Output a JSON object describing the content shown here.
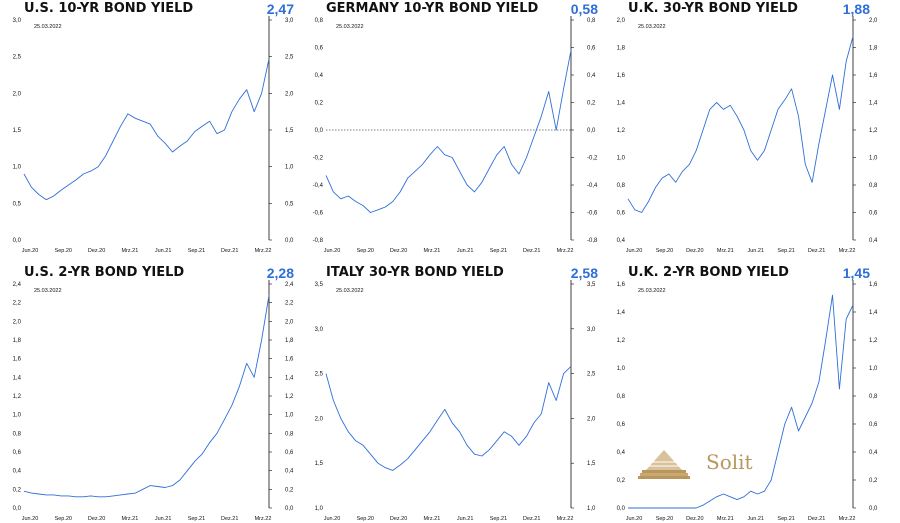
{
  "logo": {
    "text": "Solit",
    "colors": {
      "gold": "#b8965e",
      "gold_light": "#d9c29a"
    }
  },
  "colors": {
    "line": "#2f6fd8",
    "accent": "#2f6fd8",
    "axis": "#111111",
    "zero": "#555555"
  },
  "chart_data": [
    {
      "type": "line",
      "title": "U.S. 10-YR BOND YIELD",
      "last_value": "2,47",
      "date_label": "25.03.2022",
      "ylim": [
        0,
        3
      ],
      "yticks": [
        "0,0",
        "0,5",
        "1,0",
        "1,5",
        "2,0",
        "2,5",
        "3,0"
      ],
      "xticks": [
        "Jun.20",
        "Sep.20",
        "Dez.20",
        "Mrz.21",
        "Jun.21",
        "Sep.21",
        "Dez.21",
        "Mrz.22"
      ],
      "zero_line": false,
      "series": [
        {
          "values": [
            0.9,
            0.72,
            0.62,
            0.55,
            0.6,
            0.68,
            0.75,
            0.82,
            0.9,
            0.94,
            1.0,
            1.15,
            1.35,
            1.55,
            1.72,
            1.66,
            1.62,
            1.58,
            1.42,
            1.32,
            1.2,
            1.28,
            1.35,
            1.48,
            1.55,
            1.62,
            1.45,
            1.5,
            1.75,
            1.92,
            2.05,
            1.75,
            2.0,
            2.47
          ]
        }
      ]
    },
    {
      "type": "line",
      "title": "GERMANY 10-YR BOND YIELD",
      "last_value": "0,58",
      "date_label": "25.03.2022",
      "ylim": [
        -0.8,
        0.8
      ],
      "yticks": [
        "-0,8",
        "-0,6",
        "-0,4",
        "-0,2",
        "0,0",
        "0,2",
        "0,4",
        "0,6",
        "0,8"
      ],
      "xticks": [
        "Jun.20",
        "Sep.20",
        "Dez.20",
        "Mrz.21",
        "Jun.21",
        "Sep.21",
        "Dez.21",
        "Mrz.22"
      ],
      "zero_line": true,
      "series": [
        {
          "values": [
            -0.33,
            -0.45,
            -0.5,
            -0.48,
            -0.52,
            -0.55,
            -0.6,
            -0.58,
            -0.56,
            -0.52,
            -0.45,
            -0.35,
            -0.3,
            -0.25,
            -0.18,
            -0.12,
            -0.18,
            -0.2,
            -0.3,
            -0.4,
            -0.45,
            -0.38,
            -0.28,
            -0.18,
            -0.12,
            -0.25,
            -0.32,
            -0.2,
            -0.05,
            0.1,
            0.28,
            0.0,
            0.3,
            0.58
          ]
        }
      ]
    },
    {
      "type": "line",
      "title": "U.K. 30-YR BOND YIELD",
      "last_value": "1,88",
      "date_label": "25.03.2022",
      "ylim": [
        0.4,
        2.0
      ],
      "yticks": [
        "0,4",
        "0,6",
        "0,8",
        "1,0",
        "1,2",
        "1,4",
        "1,6",
        "1,8",
        "2,0"
      ],
      "xticks": [
        "Jun.20",
        "Sep.20",
        "Dez.20",
        "Mrz.21",
        "Jun.21",
        "Sep.21",
        "Dez.21",
        "Mrz.22"
      ],
      "zero_line": false,
      "series": [
        {
          "values": [
            0.7,
            0.62,
            0.6,
            0.68,
            0.78,
            0.85,
            0.88,
            0.82,
            0.9,
            0.95,
            1.05,
            1.2,
            1.35,
            1.4,
            1.35,
            1.38,
            1.3,
            1.2,
            1.05,
            0.98,
            1.05,
            1.2,
            1.35,
            1.42,
            1.5,
            1.3,
            0.95,
            0.82,
            1.1,
            1.35,
            1.6,
            1.35,
            1.7,
            1.88
          ]
        }
      ]
    },
    {
      "type": "line",
      "title": "U.S. 2-YR BOND YIELD",
      "last_value": "2,28",
      "date_label": "25.03.2022",
      "ylim": [
        0,
        2.4
      ],
      "yticks": [
        "0,0",
        "0,2",
        "0,4",
        "0,6",
        "0,8",
        "1,0",
        "1,2",
        "1,4",
        "1,6",
        "1,8",
        "2,0",
        "2,2",
        "2,4"
      ],
      "xticks": [
        "Jun.20",
        "Sep.20",
        "Dez.20",
        "Mrz.21",
        "Jun.21",
        "Sep.21",
        "Dez.21",
        "Mrz.22"
      ],
      "zero_line": false,
      "series": [
        {
          "values": [
            0.18,
            0.16,
            0.15,
            0.14,
            0.14,
            0.13,
            0.13,
            0.12,
            0.12,
            0.13,
            0.12,
            0.12,
            0.13,
            0.14,
            0.15,
            0.16,
            0.2,
            0.24,
            0.23,
            0.22,
            0.24,
            0.3,
            0.4,
            0.5,
            0.58,
            0.7,
            0.8,
            0.95,
            1.1,
            1.3,
            1.55,
            1.4,
            1.8,
            2.28
          ]
        }
      ]
    },
    {
      "type": "line",
      "title": "ITALY 30-YR BOND YIELD",
      "last_value": "2,58",
      "date_label": "25.03.2022",
      "ylim": [
        1.0,
        3.5
      ],
      "yticks": [
        "1,0",
        "1,5",
        "2,0",
        "2,5",
        "3,0",
        "3,5"
      ],
      "xticks": [
        "Jun.20",
        "Sep.20",
        "Dez.20",
        "Mrz.21",
        "Jun.21",
        "Sep.21",
        "Dez.21",
        "Mrz.22"
      ],
      "zero_line": false,
      "series": [
        {
          "values": [
            2.5,
            2.2,
            2.0,
            1.85,
            1.75,
            1.7,
            1.6,
            1.5,
            1.45,
            1.42,
            1.48,
            1.55,
            1.65,
            1.75,
            1.85,
            1.98,
            2.1,
            1.95,
            1.85,
            1.7,
            1.6,
            1.58,
            1.65,
            1.75,
            1.85,
            1.8,
            1.7,
            1.8,
            1.95,
            2.05,
            2.4,
            2.2,
            2.5,
            2.58
          ]
        }
      ]
    },
    {
      "type": "line",
      "title": "U.K. 2-YR BOND YIELD",
      "last_value": "1,45",
      "date_label": "25.03.2022",
      "ylim": [
        0,
        1.6
      ],
      "yticks": [
        "0,0",
        "0,2",
        "0,4",
        "0,6",
        "0,8",
        "1,0",
        "1,2",
        "1,4",
        "1,6"
      ],
      "xticks": [
        "Jun.20",
        "Sep.20",
        "Dez.20",
        "Mrz.21",
        "Jun.21",
        "Sep.21",
        "Dez.21",
        "Mrz.22"
      ],
      "zero_line": false,
      "series": [
        {
          "values": [
            0.0,
            0.0,
            0.0,
            0.0,
            0.0,
            0.0,
            0.0,
            0.0,
            0.0,
            0.0,
            0.0,
            0.02,
            0.05,
            0.08,
            0.1,
            0.08,
            0.06,
            0.08,
            0.12,
            0.1,
            0.12,
            0.2,
            0.4,
            0.6,
            0.72,
            0.55,
            0.65,
            0.75,
            0.9,
            1.2,
            1.52,
            0.85,
            1.35,
            1.45
          ]
        }
      ]
    }
  ]
}
